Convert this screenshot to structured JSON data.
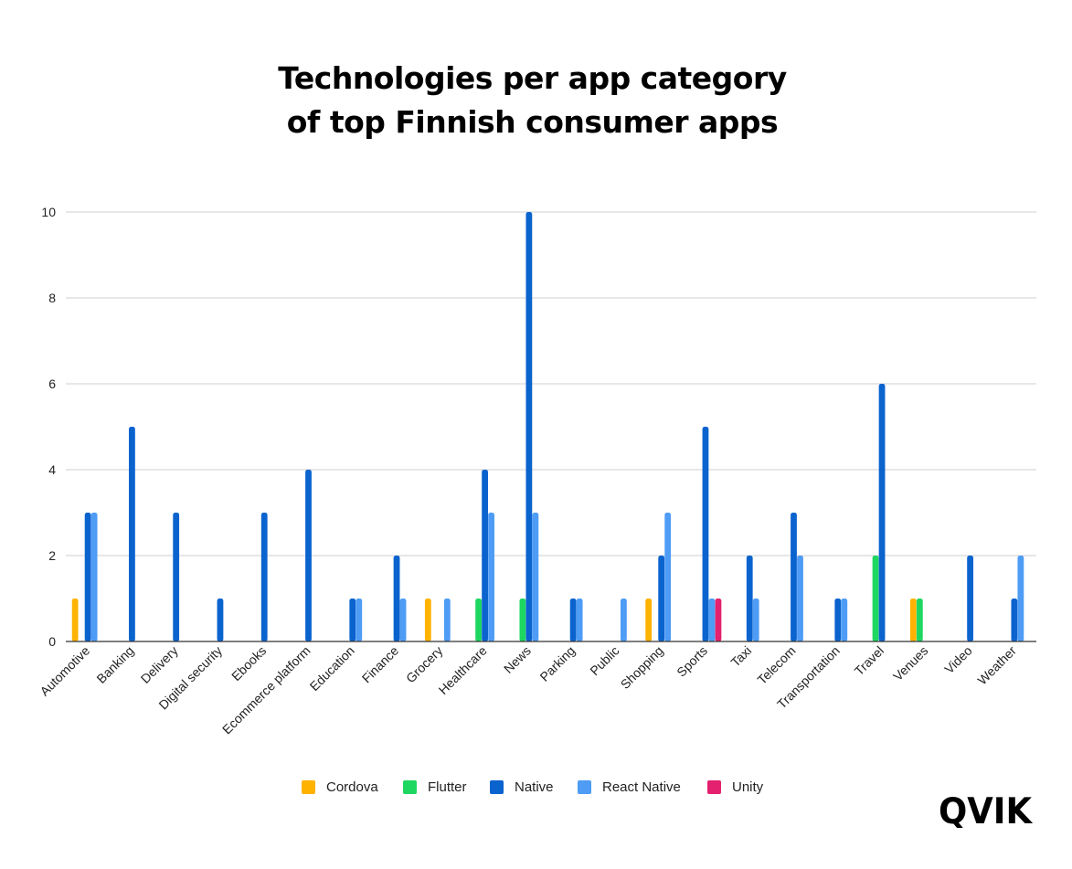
{
  "chart_data": {
    "type": "bar",
    "title": [
      "Technologies per app category",
      "of top Finnish consumer apps"
    ],
    "xlabel": "",
    "ylabel": "",
    "ylim": [
      0,
      10
    ],
    "yticks": [
      "0",
      "2",
      "4",
      "6",
      "8",
      "10"
    ],
    "grid": true,
    "legend_position": "bottom",
    "categories": [
      "Automotive",
      "Banking",
      "Delivery",
      "Digital security",
      "Ebooks",
      "Ecommerce platform",
      "Education",
      "Finance",
      "Grocery",
      "Healthcare",
      "News",
      "Parking",
      "Public",
      "Shopping",
      "Sports",
      "Taxi",
      "Telecom",
      "Transportation",
      "Travel",
      "Venues",
      "Video",
      "Weather"
    ],
    "series": [
      {
        "name": "Cordova",
        "color": "#ffb300",
        "values": [
          1,
          0,
          0,
          0,
          0,
          0,
          0,
          0,
          1,
          0,
          0,
          0,
          0,
          1,
          0,
          0,
          0,
          0,
          0,
          1,
          0,
          0
        ]
      },
      {
        "name": "Flutter",
        "color": "#1ed760",
        "values": [
          0,
          0,
          0,
          0,
          0,
          0,
          0,
          0,
          0,
          1,
          1,
          0,
          0,
          0,
          0,
          0,
          0,
          0,
          2,
          1,
          0,
          0
        ]
      },
      {
        "name": "Native",
        "color": "#0b63ce",
        "values": [
          3,
          5,
          3,
          1,
          3,
          4,
          1,
          2,
          0,
          4,
          10,
          1,
          0,
          2,
          5,
          2,
          3,
          1,
          6,
          0,
          2,
          1
        ]
      },
      {
        "name": "React Native",
        "color": "#4e9cf5",
        "values": [
          3,
          0,
          0,
          0,
          0,
          0,
          1,
          1,
          1,
          3,
          3,
          1,
          1,
          3,
          1,
          1,
          2,
          1,
          0,
          0,
          0,
          2
        ]
      },
      {
        "name": "Unity",
        "color": "#e3216e",
        "values": [
          0,
          0,
          0,
          0,
          0,
          0,
          0,
          0,
          0,
          0,
          0,
          0,
          0,
          0,
          1,
          0,
          0,
          0,
          0,
          0,
          0,
          0
        ]
      }
    ]
  },
  "logo": {
    "text": "QVIK"
  }
}
